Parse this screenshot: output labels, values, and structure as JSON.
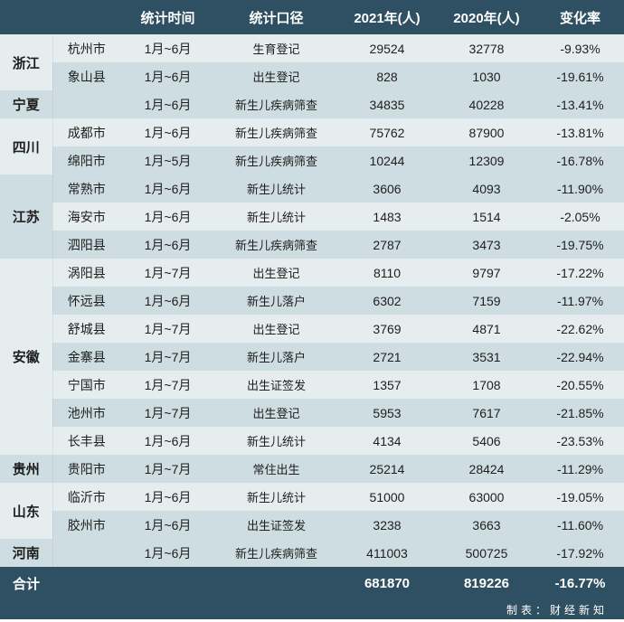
{
  "colors": {
    "headerBg": "#2f5062",
    "headerText": "#ffffff",
    "rowEven": "#e6edef",
    "rowOdd": "#cedde1",
    "text": "#1e1e1e"
  },
  "headers": {
    "province": "",
    "city": "",
    "period": "统计时间",
    "caliber": "统计口径",
    "y2021": "2021年(人)",
    "y2020": "2020年(人)",
    "change": "变化率"
  },
  "rows": [
    {
      "province": "浙江",
      "city": "杭州市",
      "period": "1月~6月",
      "caliber": "生育登记",
      "y2021": "29524",
      "y2020": "32778",
      "change": "-9.93%",
      "span": 2,
      "stripe": 0
    },
    {
      "province": "",
      "city": "象山县",
      "period": "1月~6月",
      "caliber": "出生登记",
      "y2021": "828",
      "y2020": "1030",
      "change": "-19.61%",
      "span": 0,
      "stripe": 0
    },
    {
      "province": "宁夏",
      "city": "",
      "period": "1月~6月",
      "caliber": "新生儿疾病筛查",
      "y2021": "34835",
      "y2020": "40228",
      "change": "-13.41%",
      "span": 1,
      "stripe": 1
    },
    {
      "province": "四川",
      "city": "成都市",
      "period": "1月~6月",
      "caliber": "新生儿疾病筛查",
      "y2021": "75762",
      "y2020": "87900",
      "change": "-13.81%",
      "span": 2,
      "stripe": 0
    },
    {
      "province": "",
      "city": "绵阳市",
      "period": "1月~5月",
      "caliber": "新生儿疾病筛查",
      "y2021": "10244",
      "y2020": "12309",
      "change": "-16.78%",
      "span": 0,
      "stripe": 0
    },
    {
      "province": "江苏",
      "city": "常熟市",
      "period": "1月~6月",
      "caliber": "新生儿统计",
      "y2021": "3606",
      "y2020": "4093",
      "change": "-11.90%",
      "span": 3,
      "stripe": 1
    },
    {
      "province": "",
      "city": "海安市",
      "period": "1月~6月",
      "caliber": "新生儿统计",
      "y2021": "1483",
      "y2020": "1514",
      "change": "-2.05%",
      "span": 0,
      "stripe": 1
    },
    {
      "province": "",
      "city": "泗阳县",
      "period": "1月~6月",
      "caliber": "新生儿疾病筛查",
      "y2021": "2787",
      "y2020": "3473",
      "change": "-19.75%",
      "span": 0,
      "stripe": 1
    },
    {
      "province": "安徽",
      "city": "涡阳县",
      "period": "1月~7月",
      "caliber": "出生登记",
      "y2021": "8110",
      "y2020": "9797",
      "change": "-17.22%",
      "span": 7,
      "stripe": 0
    },
    {
      "province": "",
      "city": "怀远县",
      "period": "1月~6月",
      "caliber": "新生儿落户",
      "y2021": "6302",
      "y2020": "7159",
      "change": "-11.97%",
      "span": 0,
      "stripe": 0
    },
    {
      "province": "",
      "city": "舒城县",
      "period": "1月~7月",
      "caliber": "出生登记",
      "y2021": "3769",
      "y2020": "4871",
      "change": "-22.62%",
      "span": 0,
      "stripe": 0
    },
    {
      "province": "",
      "city": "金寨县",
      "period": "1月~7月",
      "caliber": "新生儿落户",
      "y2021": "2721",
      "y2020": "3531",
      "change": "-22.94%",
      "span": 0,
      "stripe": 0
    },
    {
      "province": "",
      "city": "宁国市",
      "period": "1月~7月",
      "caliber": "出生证签发",
      "y2021": "1357",
      "y2020": "1708",
      "change": "-20.55%",
      "span": 0,
      "stripe": 0
    },
    {
      "province": "",
      "city": "池州市",
      "period": "1月~7月",
      "caliber": "出生登记",
      "y2021": "5953",
      "y2020": "7617",
      "change": "-21.85%",
      "span": 0,
      "stripe": 0
    },
    {
      "province": "",
      "city": "长丰县",
      "period": "1月~6月",
      "caliber": "新生儿统计",
      "y2021": "4134",
      "y2020": "5406",
      "change": "-23.53%",
      "span": 0,
      "stripe": 0
    },
    {
      "province": "贵州",
      "city": "贵阳市",
      "period": "1月~7月",
      "caliber": "常住出生",
      "y2021": "25214",
      "y2020": "28424",
      "change": "-11.29%",
      "span": 1,
      "stripe": 1
    },
    {
      "province": "山东",
      "city": "临沂市",
      "period": "1月~6月",
      "caliber": "新生儿统计",
      "y2021": "51000",
      "y2020": "63000",
      "change": "-19.05%",
      "span": 2,
      "stripe": 0
    },
    {
      "province": "",
      "city": "胶州市",
      "period": "1月~6月",
      "caliber": "出生证签发",
      "y2021": "3238",
      "y2020": "3663",
      "change": "-11.60%",
      "span": 0,
      "stripe": 0
    },
    {
      "province": "河南",
      "city": "",
      "period": "1月~6月",
      "caliber": "新生儿疾病筛查",
      "y2021": "411003",
      "y2020": "500725",
      "change": "-17.92%",
      "span": 1,
      "stripe": 1
    }
  ],
  "total": {
    "label": "合计",
    "y2021": "681870",
    "y2020": "819226",
    "change": "-16.77%"
  },
  "credit": "制表：财经新知"
}
